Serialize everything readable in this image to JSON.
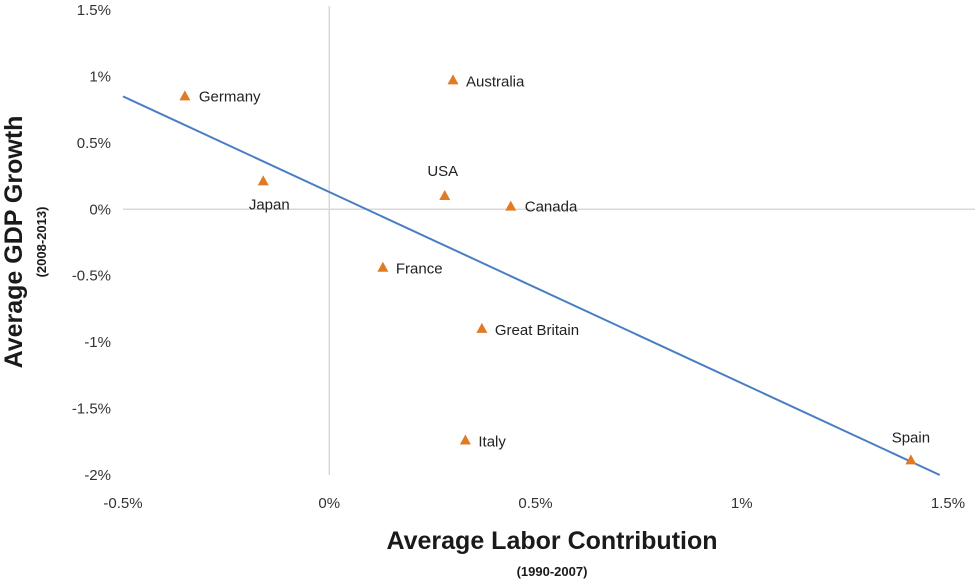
{
  "chart_data": {
    "type": "scatter",
    "title": "",
    "xlabel": "Average Labor Contribution",
    "xlabel_sub": "(1990-2007)",
    "ylabel": "Average GDP Growth",
    "ylabel_sub": "(2008-2013)",
    "xlim": [
      -0.5,
      1.5
    ],
    "ylim": [
      -2.0,
      1.5
    ],
    "x_ticks": [
      -0.5,
      0,
      0.5,
      1,
      1.5
    ],
    "x_tick_labels": [
      "-0.5%",
      "0%",
      "0.5%",
      "1%",
      "1.5%"
    ],
    "y_ticks": [
      1.5,
      1,
      0.5,
      0,
      -0.5,
      -1,
      -1.5,
      -2
    ],
    "y_tick_labels": [
      "1.5%",
      "1%",
      "0.5%",
      "0%",
      "-0.5%",
      "-1%",
      "-1.5%",
      "-2%"
    ],
    "grid": false,
    "marker_color": "#e07b24",
    "line_color": "#4a7ec4",
    "points": [
      {
        "label": "Germany",
        "x": -0.35,
        "y": 0.85
      },
      {
        "label": "Australia",
        "x": 0.3,
        "y": 0.97
      },
      {
        "label": "Japan",
        "x": -0.16,
        "y": 0.21
      },
      {
        "label": "USA",
        "x": 0.28,
        "y": 0.1
      },
      {
        "label": "Canada",
        "x": 0.44,
        "y": 0.02
      },
      {
        "label": "France",
        "x": 0.13,
        "y": -0.44
      },
      {
        "label": "Great Britain",
        "x": 0.37,
        "y": -0.9
      },
      {
        "label": "Italy",
        "x": 0.33,
        "y": -1.74
      },
      {
        "label": "Spain",
        "x": 1.41,
        "y": -1.89
      }
    ],
    "trendline": {
      "x": [
        -0.5,
        1.48
      ],
      "y": [
        0.85,
        -2.0
      ]
    }
  }
}
